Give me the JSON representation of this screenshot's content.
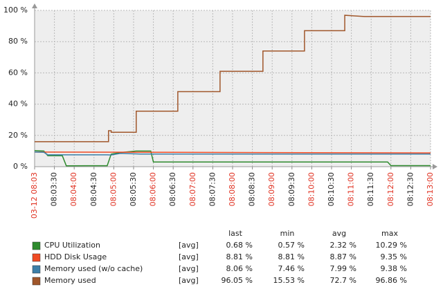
{
  "chart_data": {
    "type": "line",
    "xlim": [
      "08:03:00",
      "08:13:00"
    ],
    "xticks": [
      {
        "value": "08:03:00",
        "label": "03-12 08:03"
      },
      {
        "value": "08:03:30",
        "label": "08:03:30"
      },
      {
        "value": "08:04:00",
        "label": "08:04:00"
      },
      {
        "value": "08:04:30",
        "label": "08:04:30"
      },
      {
        "value": "08:05:00",
        "label": "08:05:00"
      },
      {
        "value": "08:05:30",
        "label": "08:05:30"
      },
      {
        "value": "08:06:00",
        "label": "08:06:00"
      },
      {
        "value": "08:06:30",
        "label": "08:06:30"
      },
      {
        "value": "08:07:00",
        "label": "08:07:00"
      },
      {
        "value": "08:07:30",
        "label": "08:07:30"
      },
      {
        "value": "08:08:00",
        "label": "08:08:00"
      },
      {
        "value": "08:08:30",
        "label": "08:08:30"
      },
      {
        "value": "08:09:00",
        "label": "08:09:00"
      },
      {
        "value": "08:09:30",
        "label": "08:09:30"
      },
      {
        "value": "08:10:00",
        "label": "08:10:00"
      },
      {
        "value": "08:10:30",
        "label": "08:10:30"
      },
      {
        "value": "08:11:00",
        "label": "08:11:00"
      },
      {
        "value": "08:11:30",
        "label": "08:11:30"
      },
      {
        "value": "08:12:00",
        "label": "08:12:00"
      },
      {
        "value": "08:12:30",
        "label": "08:12:30"
      },
      {
        "value": "08:13:00",
        "label": "08:13:00"
      }
    ],
    "ylim": [
      0,
      100
    ],
    "yticks": [
      {
        "value": 0,
        "label": "0 %"
      },
      {
        "value": 20,
        "label": "20 %"
      },
      {
        "value": 40,
        "label": "40 %"
      },
      {
        "value": 60,
        "label": "60 %"
      },
      {
        "value": 80,
        "label": "80 %"
      },
      {
        "value": 100,
        "label": "100 %"
      }
    ],
    "grid": true,
    "series": [
      {
        "name": "CPU Utilization",
        "color": "#2e8b2e",
        "x": [
          "08:03:00",
          "08:03:14",
          "08:03:20",
          "08:03:42",
          "08:03:48",
          "08:04:50",
          "08:04:56",
          "08:05:10",
          "08:05:34",
          "08:05:56",
          "08:06:00",
          "08:11:55",
          "08:12:00",
          "08:13:00"
        ],
        "values": [
          10.29,
          10,
          7,
          7,
          0.57,
          0.6,
          8,
          9,
          10,
          10,
          3,
          3,
          0.68,
          0.68
        ]
      },
      {
        "name": "HDD Disk Usage",
        "color": "#f04a23",
        "x": [
          "08:03:00",
          "08:13:00"
        ],
        "values": [
          9.35,
          8.81
        ]
      },
      {
        "name": "Memory used (w/o cache)",
        "color": "#3c7fa8",
        "x": [
          "08:03:00",
          "08:03:14",
          "08:03:20",
          "08:04:50",
          "08:04:56",
          "08:05:10",
          "08:05:40",
          "08:13:00"
        ],
        "values": [
          9.38,
          9.2,
          7.6,
          7.6,
          7.46,
          8.5,
          8.1,
          8.06
        ]
      },
      {
        "name": "Memory used",
        "color": "#a0562a",
        "x": [
          "08:03:00",
          "08:04:52",
          "08:04:52",
          "08:04:56",
          "08:04:56",
          "08:05:34",
          "08:05:34",
          "08:06:37",
          "08:06:37",
          "08:07:41",
          "08:07:41",
          "08:08:46",
          "08:08:46",
          "08:09:49",
          "08:09:49",
          "08:10:50",
          "08:10:50",
          "08:11:20",
          "08:13:00"
        ],
        "values": [
          16,
          16,
          23,
          23,
          22,
          22,
          35.5,
          35.5,
          48,
          48,
          61,
          61,
          74,
          74,
          87,
          87,
          96.86,
          96.05,
          96.05
        ]
      }
    ],
    "legend_table": {
      "columns": [
        "last",
        "min",
        "avg",
        "max"
      ],
      "rows": [
        {
          "function": "[avg]",
          "cells": [
            "0.68 %",
            "0.57 %",
            "2.32 %",
            "10.29 %"
          ]
        },
        {
          "function": "[avg]",
          "cells": [
            "8.81 %",
            "8.81 %",
            "8.87 %",
            "9.35 %"
          ]
        },
        {
          "function": "[avg]",
          "cells": [
            "8.06 %",
            "7.46 %",
            "7.99 %",
            "9.38 %"
          ]
        },
        {
          "function": "[avg]",
          "cells": [
            "96.05 %",
            "15.53 %",
            "72.7 %",
            "96.86 %"
          ]
        }
      ]
    }
  }
}
